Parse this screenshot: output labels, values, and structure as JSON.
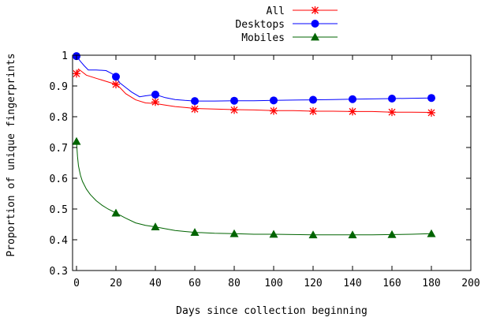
{
  "chart_data": {
    "type": "line",
    "title": "",
    "xlabel": "Days since collection beginning",
    "ylabel": "Proportion of unique fingerprints",
    "xlim": [
      -2,
      200
    ],
    "ylim": [
      0.3,
      1.0
    ],
    "x_ticks": [
      0,
      20,
      40,
      60,
      80,
      100,
      120,
      140,
      160,
      180,
      200
    ],
    "x_tick_labels": [
      "0",
      "20",
      "40",
      "60",
      "80",
      "100",
      "120",
      "140",
      "160",
      "180",
      "200"
    ],
    "y_ticks": [
      0.3,
      0.4,
      0.5,
      0.6,
      0.7,
      0.8,
      0.9,
      1.0
    ],
    "y_tick_labels": [
      "0.3",
      "0.4",
      "0.5",
      "0.6",
      "0.7",
      "0.8",
      "0.9",
      "1"
    ],
    "grid": false,
    "legend_position": "top-right, outside plot",
    "series": [
      {
        "name": "All",
        "color": "#ff0000",
        "marker": "star",
        "curve_x": [
          0,
          1,
          3,
          5,
          10,
          15,
          20,
          22,
          25,
          30,
          35,
          40,
          45,
          50,
          55,
          60,
          70,
          80,
          90,
          100,
          110,
          120,
          130,
          140,
          150,
          160,
          170,
          180
        ],
        "curve_y": [
          0.94,
          0.955,
          0.945,
          0.935,
          0.925,
          0.915,
          0.905,
          0.895,
          0.875,
          0.855,
          0.845,
          0.843,
          0.838,
          0.833,
          0.83,
          0.827,
          0.825,
          0.823,
          0.822,
          0.82,
          0.82,
          0.818,
          0.818,
          0.817,
          0.817,
          0.815,
          0.815,
          0.814
        ],
        "marker_x": [
          0,
          20,
          40,
          60,
          80,
          100,
          120,
          140,
          160,
          180
        ],
        "marker_y": [
          0.94,
          0.905,
          0.848,
          0.825,
          0.822,
          0.819,
          0.818,
          0.817,
          0.815,
          0.813
        ]
      },
      {
        "name": "Desktops",
        "color": "#0000ff",
        "marker": "circle",
        "curve_x": [
          0,
          2,
          4,
          6,
          10,
          15,
          18,
          20,
          22,
          25,
          28,
          32,
          35,
          40,
          45,
          50,
          55,
          60,
          70,
          80,
          90,
          100,
          110,
          120,
          130,
          140,
          150,
          160,
          170,
          180
        ],
        "curve_y": [
          0.997,
          0.98,
          0.965,
          0.952,
          0.952,
          0.95,
          0.94,
          0.93,
          0.91,
          0.895,
          0.88,
          0.865,
          0.868,
          0.872,
          0.862,
          0.856,
          0.853,
          0.851,
          0.851,
          0.852,
          0.852,
          0.853,
          0.854,
          0.855,
          0.856,
          0.857,
          0.858,
          0.859,
          0.86,
          0.861
        ],
        "marker_x": [
          0,
          20,
          40,
          60,
          80,
          100,
          120,
          140,
          160,
          180
        ],
        "marker_y": [
          0.997,
          0.93,
          0.872,
          0.851,
          0.852,
          0.853,
          0.855,
          0.857,
          0.859,
          0.861
        ]
      },
      {
        "name": "Mobiles",
        "color": "#006400",
        "marker": "triangle",
        "curve_x": [
          0,
          0.5,
          1,
          2,
          3,
          5,
          7,
          10,
          13,
          16,
          20,
          25,
          30,
          35,
          40,
          45,
          50,
          55,
          60,
          70,
          80,
          90,
          100,
          110,
          120,
          130,
          140,
          150,
          160,
          170,
          180
        ],
        "curve_y": [
          0.72,
          0.67,
          0.64,
          0.61,
          0.59,
          0.565,
          0.547,
          0.527,
          0.512,
          0.5,
          0.487,
          0.47,
          0.455,
          0.447,
          0.442,
          0.436,
          0.43,
          0.427,
          0.424,
          0.421,
          0.42,
          0.418,
          0.418,
          0.417,
          0.416,
          0.416,
          0.416,
          0.416,
          0.417,
          0.418,
          0.42
        ],
        "marker_x": [
          0,
          20,
          40,
          60,
          80,
          100,
          120,
          140,
          160,
          180
        ],
        "marker_y": [
          0.72,
          0.487,
          0.442,
          0.424,
          0.42,
          0.418,
          0.416,
          0.416,
          0.417,
          0.42
        ]
      }
    ]
  }
}
